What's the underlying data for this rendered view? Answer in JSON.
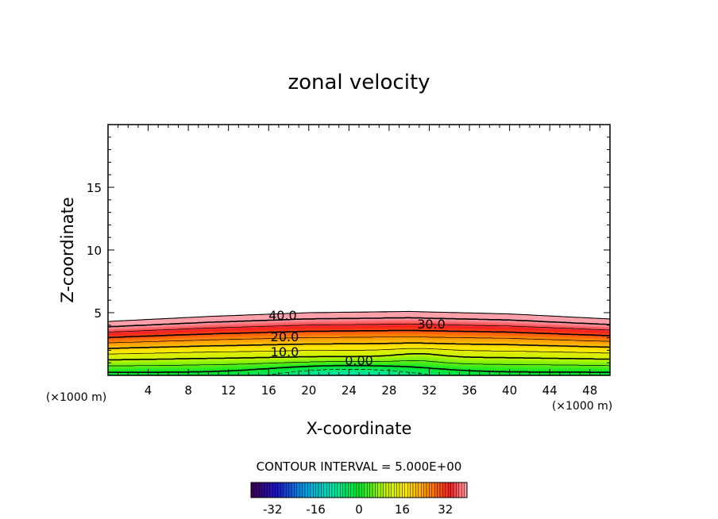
{
  "chart_data": {
    "type": "heatmap",
    "title": "zonal velocity",
    "xlabel": "X-coordinate",
    "ylabel": "Z-coordinate",
    "x_unit": "(×1000 m)",
    "y_unit": "(×1000 m)",
    "xlim": [
      0,
      50
    ],
    "ylim": [
      0,
      20
    ],
    "x_ticks": [
      4,
      8,
      12,
      16,
      20,
      24,
      28,
      32,
      36,
      40,
      44,
      48
    ],
    "y_ticks": [
      5,
      10,
      15
    ],
    "contour_interval_text": "CONTOUR INTERVAL = 5.000E+00",
    "contour_interval": 5,
    "field": {
      "description_free": true,
      "top_of_data": [
        [
          0,
          4.3
        ],
        [
          10,
          4.7
        ],
        [
          20,
          5.0
        ],
        [
          30,
          5.1
        ],
        [
          40,
          4.9
        ],
        [
          50,
          4.5
        ]
      ],
      "value_range": [
        -10,
        45
      ]
    },
    "contour_labels": [
      {
        "text": "40.0",
        "x": 17.4,
        "z": 4.8
      },
      {
        "text": "30.0",
        "x": 32.2,
        "z": 4.1
      },
      {
        "text": "20.0",
        "x": 17.6,
        "z": 3.1
      },
      {
        "text": "10.0",
        "x": 17.6,
        "z": 1.9
      },
      {
        "text": "0.00",
        "x": 25.0,
        "z": 1.2
      }
    ],
    "colorbar": {
      "range": [
        -40,
        40
      ],
      "tick_labels": [
        "-32",
        "-16",
        "0",
        "16",
        "32"
      ],
      "tick_values": [
        -32,
        -16,
        0,
        16,
        32
      ]
    },
    "grid": false,
    "legend": "colorbar-bottom"
  }
}
